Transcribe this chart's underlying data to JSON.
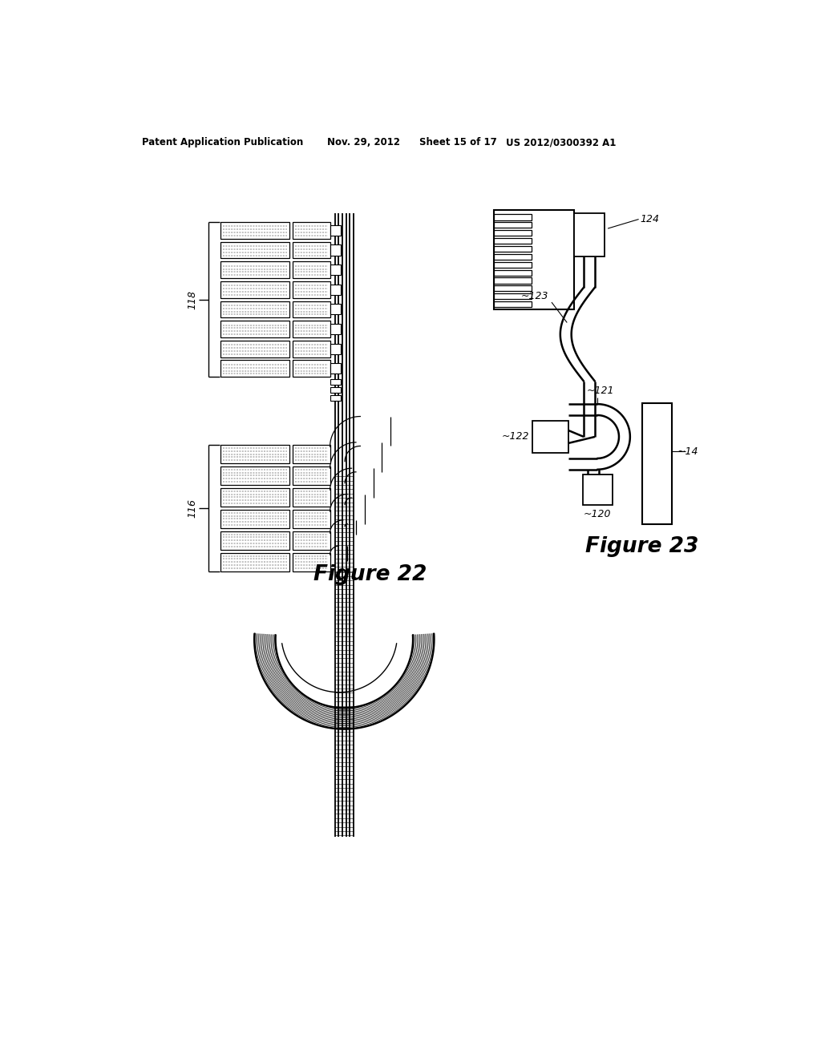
{
  "bg_color": "#ffffff",
  "line_color": "#000000",
  "header_text": "Patent Application Publication",
  "header_date": "Nov. 29, 2012",
  "header_sheet": "Sheet 15 of 17",
  "header_patent": "US 2012/0300392 A1",
  "fig22_label": "Figure 22",
  "fig23_label": "Figure 23",
  "label_118": "118",
  "label_116": "116",
  "label_124": "124",
  "label_123": "123",
  "label_121": "121",
  "label_122": "122",
  "label_120": "120",
  "label_14": "14"
}
